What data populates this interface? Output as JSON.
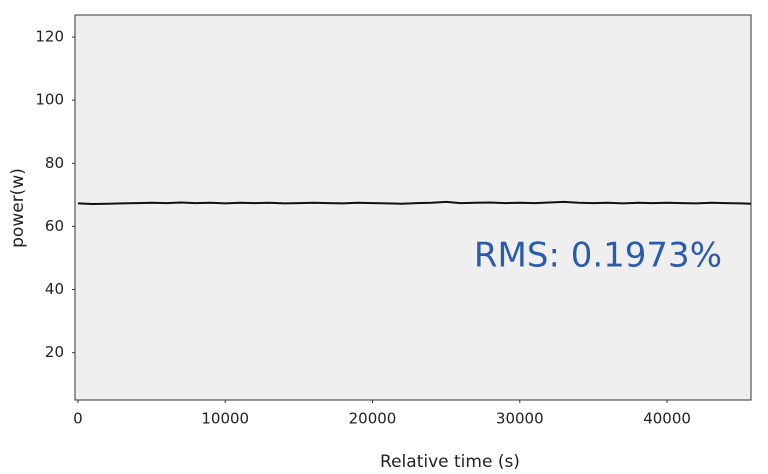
{
  "chart_data": {
    "type": "line",
    "x_label": "Relative time (s)",
    "y_label": "power(w)",
    "annotation": "RMS: 0.1973%",
    "x": [
      0,
      1000,
      2000,
      3000,
      4000,
      5000,
      6000,
      7000,
      8000,
      9000,
      10000,
      11000,
      12000,
      13000,
      14000,
      15000,
      16000,
      17000,
      18000,
      19000,
      20000,
      21000,
      22000,
      23000,
      24000,
      25000,
      26000,
      27000,
      28000,
      29000,
      30000,
      31000,
      32000,
      33000,
      34000,
      35000,
      36000,
      37000,
      38000,
      39000,
      40000,
      41000,
      42000,
      43000,
      44000,
      45000,
      45700
    ],
    "series": [
      {
        "name": "power",
        "color": "#111111",
        "values": [
          67.3,
          67.1,
          67.2,
          67.3,
          67.4,
          67.5,
          67.4,
          67.6,
          67.4,
          67.5,
          67.3,
          67.5,
          67.4,
          67.5,
          67.3,
          67.4,
          67.5,
          67.4,
          67.3,
          67.5,
          67.4,
          67.3,
          67.2,
          67.4,
          67.5,
          67.8,
          67.4,
          67.5,
          67.6,
          67.4,
          67.5,
          67.4,
          67.6,
          67.8,
          67.5,
          67.4,
          67.5,
          67.3,
          67.5,
          67.4,
          67.5,
          67.4,
          67.3,
          67.5,
          67.4,
          67.3,
          67.2
        ]
      }
    ],
    "xlim": [
      -200,
      45700
    ],
    "ylim": [
      5,
      127
    ],
    "xticks": [
      0,
      10000,
      20000,
      30000,
      40000
    ],
    "yticks": [
      20,
      40,
      60,
      80,
      100,
      120
    ],
    "annotation_color": "#2a5caa",
    "background": "#efefef"
  }
}
